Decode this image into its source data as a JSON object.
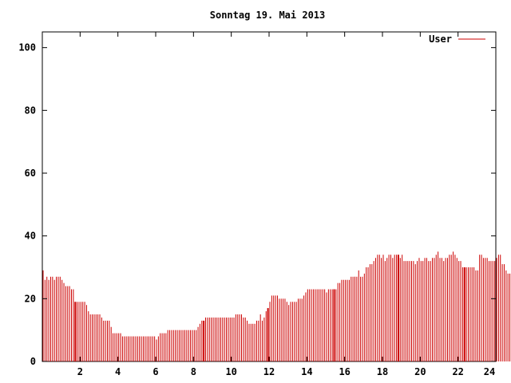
{
  "chart_data": {
    "type": "bar",
    "title": "Sonntag 19. Mai 2013",
    "xlabel": "",
    "ylabel": "",
    "xlim": [
      0,
      24
    ],
    "ylim": [
      0,
      105
    ],
    "x_ticks": [
      "2",
      "4",
      "6",
      "8",
      "10",
      "12",
      "14",
      "16",
      "18",
      "20",
      "22",
      "24"
    ],
    "y_ticks": [
      "0",
      "20",
      "40",
      "60",
      "80",
      "100"
    ],
    "grid": false,
    "legend_position": "top-right",
    "series": [
      {
        "name": "User",
        "color": "#cc0000",
        "x_step_hours": 0.1,
        "values": [
          29,
          26,
          27,
          26,
          27,
          27,
          26,
          27,
          27,
          27,
          26,
          25,
          24,
          24,
          24,
          23,
          23,
          19,
          19,
          19,
          19,
          19,
          19,
          18,
          16,
          15,
          15,
          15,
          15,
          15,
          15,
          14,
          13,
          13,
          13,
          13,
          11,
          9,
          9,
          9,
          9,
          9,
          8,
          8,
          8,
          8,
          8,
          8,
          8,
          8,
          8,
          8,
          8,
          8,
          8,
          8,
          8,
          8,
          8,
          8,
          7,
          8,
          9,
          9,
          9,
          9,
          10,
          10,
          10,
          10,
          10,
          10,
          10,
          10,
          10,
          10,
          10,
          10,
          10,
          10,
          10,
          10,
          11,
          12,
          13,
          13,
          14,
          14,
          14,
          14,
          14,
          14,
          14,
          14,
          14,
          14,
          14,
          14,
          14,
          14,
          14,
          14,
          15,
          15,
          15,
          15,
          14,
          14,
          13,
          12,
          12,
          12,
          12,
          13,
          13,
          15,
          13,
          14,
          16,
          17,
          19,
          21,
          21,
          21,
          21,
          20,
          20,
          20,
          20,
          19,
          18,
          19,
          19,
          19,
          19,
          20,
          20,
          20,
          21,
          22,
          23,
          23,
          23,
          23,
          23,
          23,
          23,
          23,
          23,
          23,
          22,
          23,
          23,
          23,
          23,
          23,
          25,
          25,
          26,
          26,
          26,
          26,
          26,
          27,
          27,
          27,
          27,
          29,
          27,
          27,
          28,
          30,
          30,
          31,
          31,
          32,
          33,
          34,
          34,
          33,
          34,
          32,
          33,
          34,
          34,
          33,
          34,
          34,
          34,
          33,
          34,
          32,
          32,
          32,
          32,
          32,
          32,
          31,
          32,
          33,
          32,
          32,
          33,
          33,
          32,
          32,
          33,
          33,
          34,
          35,
          33,
          33,
          32,
          33,
          33,
          34,
          34,
          35,
          34,
          33,
          32,
          32,
          30,
          30,
          30,
          30,
          30,
          30,
          30,
          29,
          29,
          34,
          34,
          33,
          33,
          33,
          32,
          32,
          32,
          32,
          33,
          34,
          34,
          31,
          31,
          29,
          28,
          28,
          27,
          27,
          25
        ],
        "highlight_bars": [
          17,
          85,
          119,
          154,
          188,
          223
        ]
      }
    ]
  }
}
